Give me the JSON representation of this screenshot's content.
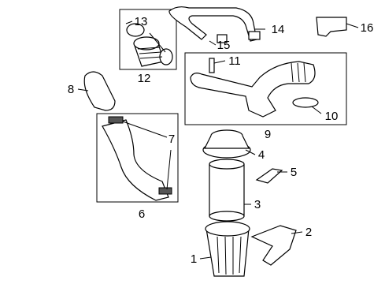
{
  "callouts": [
    {
      "label": "1"
    },
    {
      "label": "2"
    },
    {
      "label": "3"
    },
    {
      "label": "4"
    },
    {
      "label": "5"
    },
    {
      "label": "6"
    },
    {
      "label": "7"
    },
    {
      "label": "8"
    },
    {
      "label": "9"
    },
    {
      "label": "10"
    },
    {
      "label": "11"
    },
    {
      "label": "12"
    },
    {
      "label": "13"
    },
    {
      "label": "14"
    },
    {
      "label": "15"
    },
    {
      "label": "16"
    }
  ]
}
